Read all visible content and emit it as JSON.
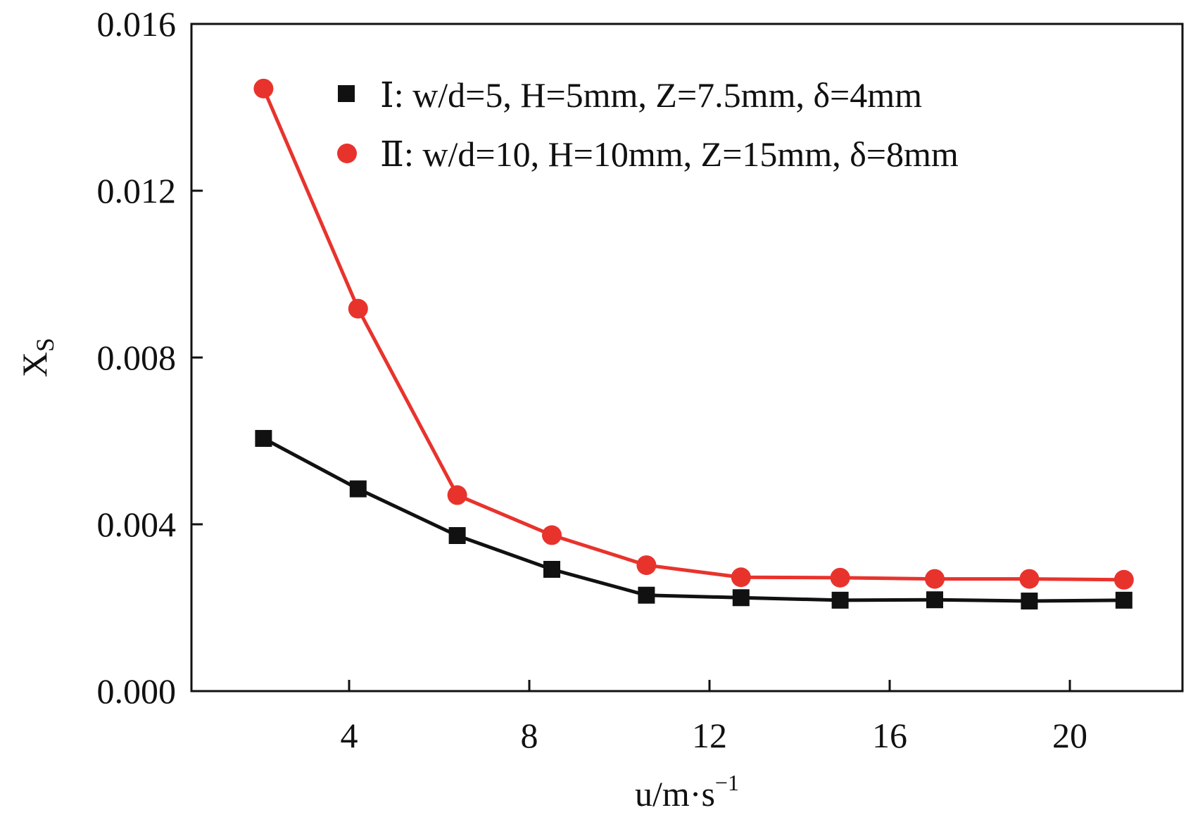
{
  "chart_data": {
    "type": "line",
    "title": "",
    "xlabel": "u/m·s",
    "xlabel_superscript": "−1",
    "ylabel": "X",
    "ylabel_subscript": "S",
    "xlim": [
      0.5,
      22.5
    ],
    "ylim": [
      0.0,
      0.016
    ],
    "xticks": [
      4,
      8,
      12,
      16,
      20
    ],
    "xtick_labels": [
      "4",
      "8",
      "12",
      "16",
      "20"
    ],
    "yticks": [
      0.0,
      0.004,
      0.008,
      0.012,
      0.016
    ],
    "ytick_labels": [
      "0.000",
      "0.004",
      "0.008",
      "0.012",
      "0.016"
    ],
    "grid": false,
    "legend_position": "top-right",
    "series": [
      {
        "name": "Ⅰ: w/d=5, H=5mm, Z=7.5mm, δ=4mm",
        "marker": "square",
        "color": "#111111",
        "x": [
          2.1,
          4.2,
          6.4,
          8.5,
          10.6,
          12.7,
          14.9,
          17.0,
          19.1,
          21.2
        ],
        "y": [
          0.00606,
          0.00485,
          0.00373,
          0.00292,
          0.0023,
          0.00224,
          0.00218,
          0.00219,
          0.00216,
          0.00218
        ]
      },
      {
        "name": "Ⅱ: w/d=10, H=10mm, Z=15mm, δ=8mm",
        "marker": "circle",
        "color": "#e8332d",
        "x": [
          2.1,
          4.2,
          6.4,
          8.5,
          10.6,
          12.7,
          14.9,
          17.0,
          19.1,
          21.2
        ],
        "y": [
          0.01445,
          0.00917,
          0.0047,
          0.00374,
          0.00302,
          0.00273,
          0.00272,
          0.00269,
          0.00269,
          0.00267
        ]
      }
    ]
  }
}
